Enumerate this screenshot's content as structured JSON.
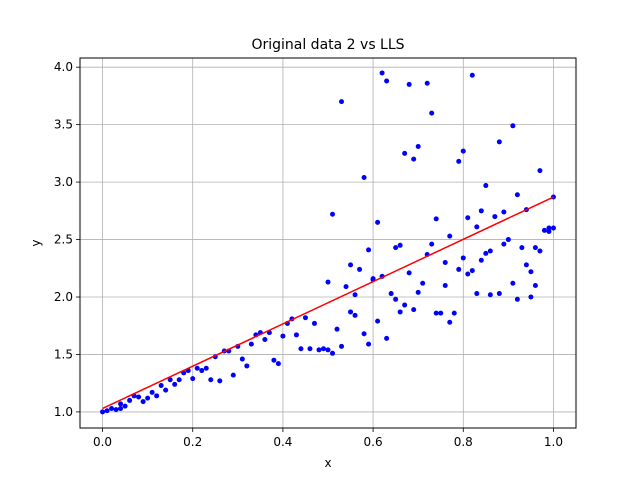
{
  "chart_data": {
    "type": "scatter",
    "title": "Original data 2 vs LLS",
    "xlabel": "x",
    "ylabel": "y",
    "xlim": [
      -0.05,
      1.05
    ],
    "ylim": [
      0.86,
      4.08
    ],
    "x_ticks": [
      0.0,
      0.2,
      0.4,
      0.6,
      0.8,
      1.0
    ],
    "x_tick_labels": [
      "0.0",
      "0.2",
      "0.4",
      "0.6",
      "0.8",
      "1.0"
    ],
    "y_ticks": [
      1.0,
      1.5,
      2.0,
      2.5,
      3.0,
      3.5,
      4.0
    ],
    "y_tick_labels": [
      "1.0",
      "1.5",
      "2.0",
      "2.5",
      "3.0",
      "3.5",
      "4.0"
    ],
    "grid": true,
    "colors": {
      "points": "#0000ff",
      "line": "#ff0000",
      "grid": "#b0b0b0"
    },
    "series": [
      {
        "type": "scatter",
        "points": [
          [
            0.0,
            1.0
          ],
          [
            0.01,
            1.01
          ],
          [
            0.02,
            1.03
          ],
          [
            0.03,
            1.02
          ],
          [
            0.04,
            1.03
          ],
          [
            0.04,
            1.07
          ],
          [
            0.05,
            1.05
          ],
          [
            0.06,
            1.1
          ],
          [
            0.07,
            1.14
          ],
          [
            0.08,
            1.13
          ],
          [
            0.09,
            1.09
          ],
          [
            0.1,
            1.12
          ],
          [
            0.11,
            1.17
          ],
          [
            0.12,
            1.14
          ],
          [
            0.13,
            1.23
          ],
          [
            0.14,
            1.19
          ],
          [
            0.15,
            1.28
          ],
          [
            0.16,
            1.24
          ],
          [
            0.17,
            1.28
          ],
          [
            0.18,
            1.34
          ],
          [
            0.19,
            1.36
          ],
          [
            0.2,
            1.29
          ],
          [
            0.21,
            1.38
          ],
          [
            0.22,
            1.36
          ],
          [
            0.23,
            1.38
          ],
          [
            0.24,
            1.28
          ],
          [
            0.25,
            1.48
          ],
          [
            0.26,
            1.27
          ],
          [
            0.27,
            1.53
          ],
          [
            0.28,
            1.53
          ],
          [
            0.29,
            1.32
          ],
          [
            0.3,
            1.57
          ],
          [
            0.31,
            1.46
          ],
          [
            0.32,
            1.4
          ],
          [
            0.33,
            1.59
          ],
          [
            0.34,
            1.67
          ],
          [
            0.35,
            1.69
          ],
          [
            0.36,
            1.63
          ],
          [
            0.37,
            1.69
          ],
          [
            0.38,
            1.45
          ],
          [
            0.39,
            1.42
          ],
          [
            0.4,
            1.66
          ],
          [
            0.41,
            1.77
          ],
          [
            0.42,
            1.81
          ],
          [
            0.43,
            1.67
          ],
          [
            0.44,
            1.55
          ],
          [
            0.45,
            1.82
          ],
          [
            0.46,
            1.55
          ],
          [
            0.47,
            1.77
          ],
          [
            0.48,
            1.54
          ],
          [
            0.49,
            1.55
          ],
          [
            0.5,
            2.13
          ],
          [
            0.5,
            1.54
          ],
          [
            0.51,
            1.51
          ],
          [
            0.51,
            2.72
          ],
          [
            0.52,
            1.72
          ],
          [
            0.53,
            3.7
          ],
          [
            0.53,
            1.57
          ],
          [
            0.54,
            2.09
          ],
          [
            0.55,
            1.87
          ],
          [
            0.55,
            2.28
          ],
          [
            0.56,
            1.84
          ],
          [
            0.56,
            2.02
          ],
          [
            0.57,
            2.24
          ],
          [
            0.58,
            1.68
          ],
          [
            0.58,
            3.04
          ],
          [
            0.59,
            1.59
          ],
          [
            0.59,
            2.41
          ],
          [
            0.6,
            2.15
          ],
          [
            0.6,
            2.16
          ],
          [
            0.61,
            2.65
          ],
          [
            0.61,
            1.79
          ],
          [
            0.62,
            3.95
          ],
          [
            0.62,
            2.18
          ],
          [
            0.63,
            3.88
          ],
          [
            0.63,
            1.64
          ],
          [
            0.64,
            2.03
          ],
          [
            0.65,
            2.43
          ],
          [
            0.65,
            1.98
          ],
          [
            0.66,
            2.45
          ],
          [
            0.66,
            1.87
          ],
          [
            0.67,
            3.25
          ],
          [
            0.67,
            1.93
          ],
          [
            0.68,
            3.85
          ],
          [
            0.68,
            2.21
          ],
          [
            0.69,
            1.89
          ],
          [
            0.69,
            3.2
          ],
          [
            0.7,
            3.31
          ],
          [
            0.7,
            2.04
          ],
          [
            0.71,
            2.12
          ],
          [
            0.72,
            3.86
          ],
          [
            0.72,
            2.37
          ],
          [
            0.73,
            2.46
          ],
          [
            0.73,
            3.6
          ],
          [
            0.74,
            1.86
          ],
          [
            0.74,
            2.68
          ],
          [
            0.75,
            1.86
          ],
          [
            0.76,
            2.1
          ],
          [
            0.76,
            2.3
          ],
          [
            0.77,
            2.53
          ],
          [
            0.77,
            1.78
          ],
          [
            0.78,
            1.86
          ],
          [
            0.79,
            3.18
          ],
          [
            0.79,
            2.24
          ],
          [
            0.8,
            3.27
          ],
          [
            0.8,
            2.34
          ],
          [
            0.81,
            2.69
          ],
          [
            0.81,
            2.2
          ],
          [
            0.82,
            2.23
          ],
          [
            0.82,
            3.93
          ],
          [
            0.83,
            2.03
          ],
          [
            0.83,
            2.61
          ],
          [
            0.84,
            2.75
          ],
          [
            0.84,
            2.32
          ],
          [
            0.85,
            2.97
          ],
          [
            0.85,
            2.38
          ],
          [
            0.86,
            2.4
          ],
          [
            0.86,
            2.02
          ],
          [
            0.87,
            2.7
          ],
          [
            0.88,
            3.35
          ],
          [
            0.88,
            2.03
          ],
          [
            0.89,
            2.74
          ],
          [
            0.89,
            2.46
          ],
          [
            0.9,
            2.5
          ],
          [
            0.91,
            3.49
          ],
          [
            0.91,
            2.12
          ],
          [
            0.92,
            1.98
          ],
          [
            0.92,
            2.89
          ],
          [
            0.93,
            2.43
          ],
          [
            0.94,
            2.76
          ],
          [
            0.94,
            2.28
          ],
          [
            0.95,
            2.22
          ],
          [
            0.95,
            2.0
          ],
          [
            0.96,
            2.43
          ],
          [
            0.96,
            2.1
          ],
          [
            0.97,
            2.4
          ],
          [
            0.97,
            3.1
          ],
          [
            0.98,
            2.58
          ],
          [
            0.99,
            2.57
          ],
          [
            0.99,
            2.6
          ],
          [
            1.0,
            2.87
          ],
          [
            1.0,
            2.6
          ]
        ]
      },
      {
        "type": "line",
        "points": [
          [
            0.0,
            1.03
          ],
          [
            1.0,
            2.87
          ]
        ]
      }
    ]
  }
}
